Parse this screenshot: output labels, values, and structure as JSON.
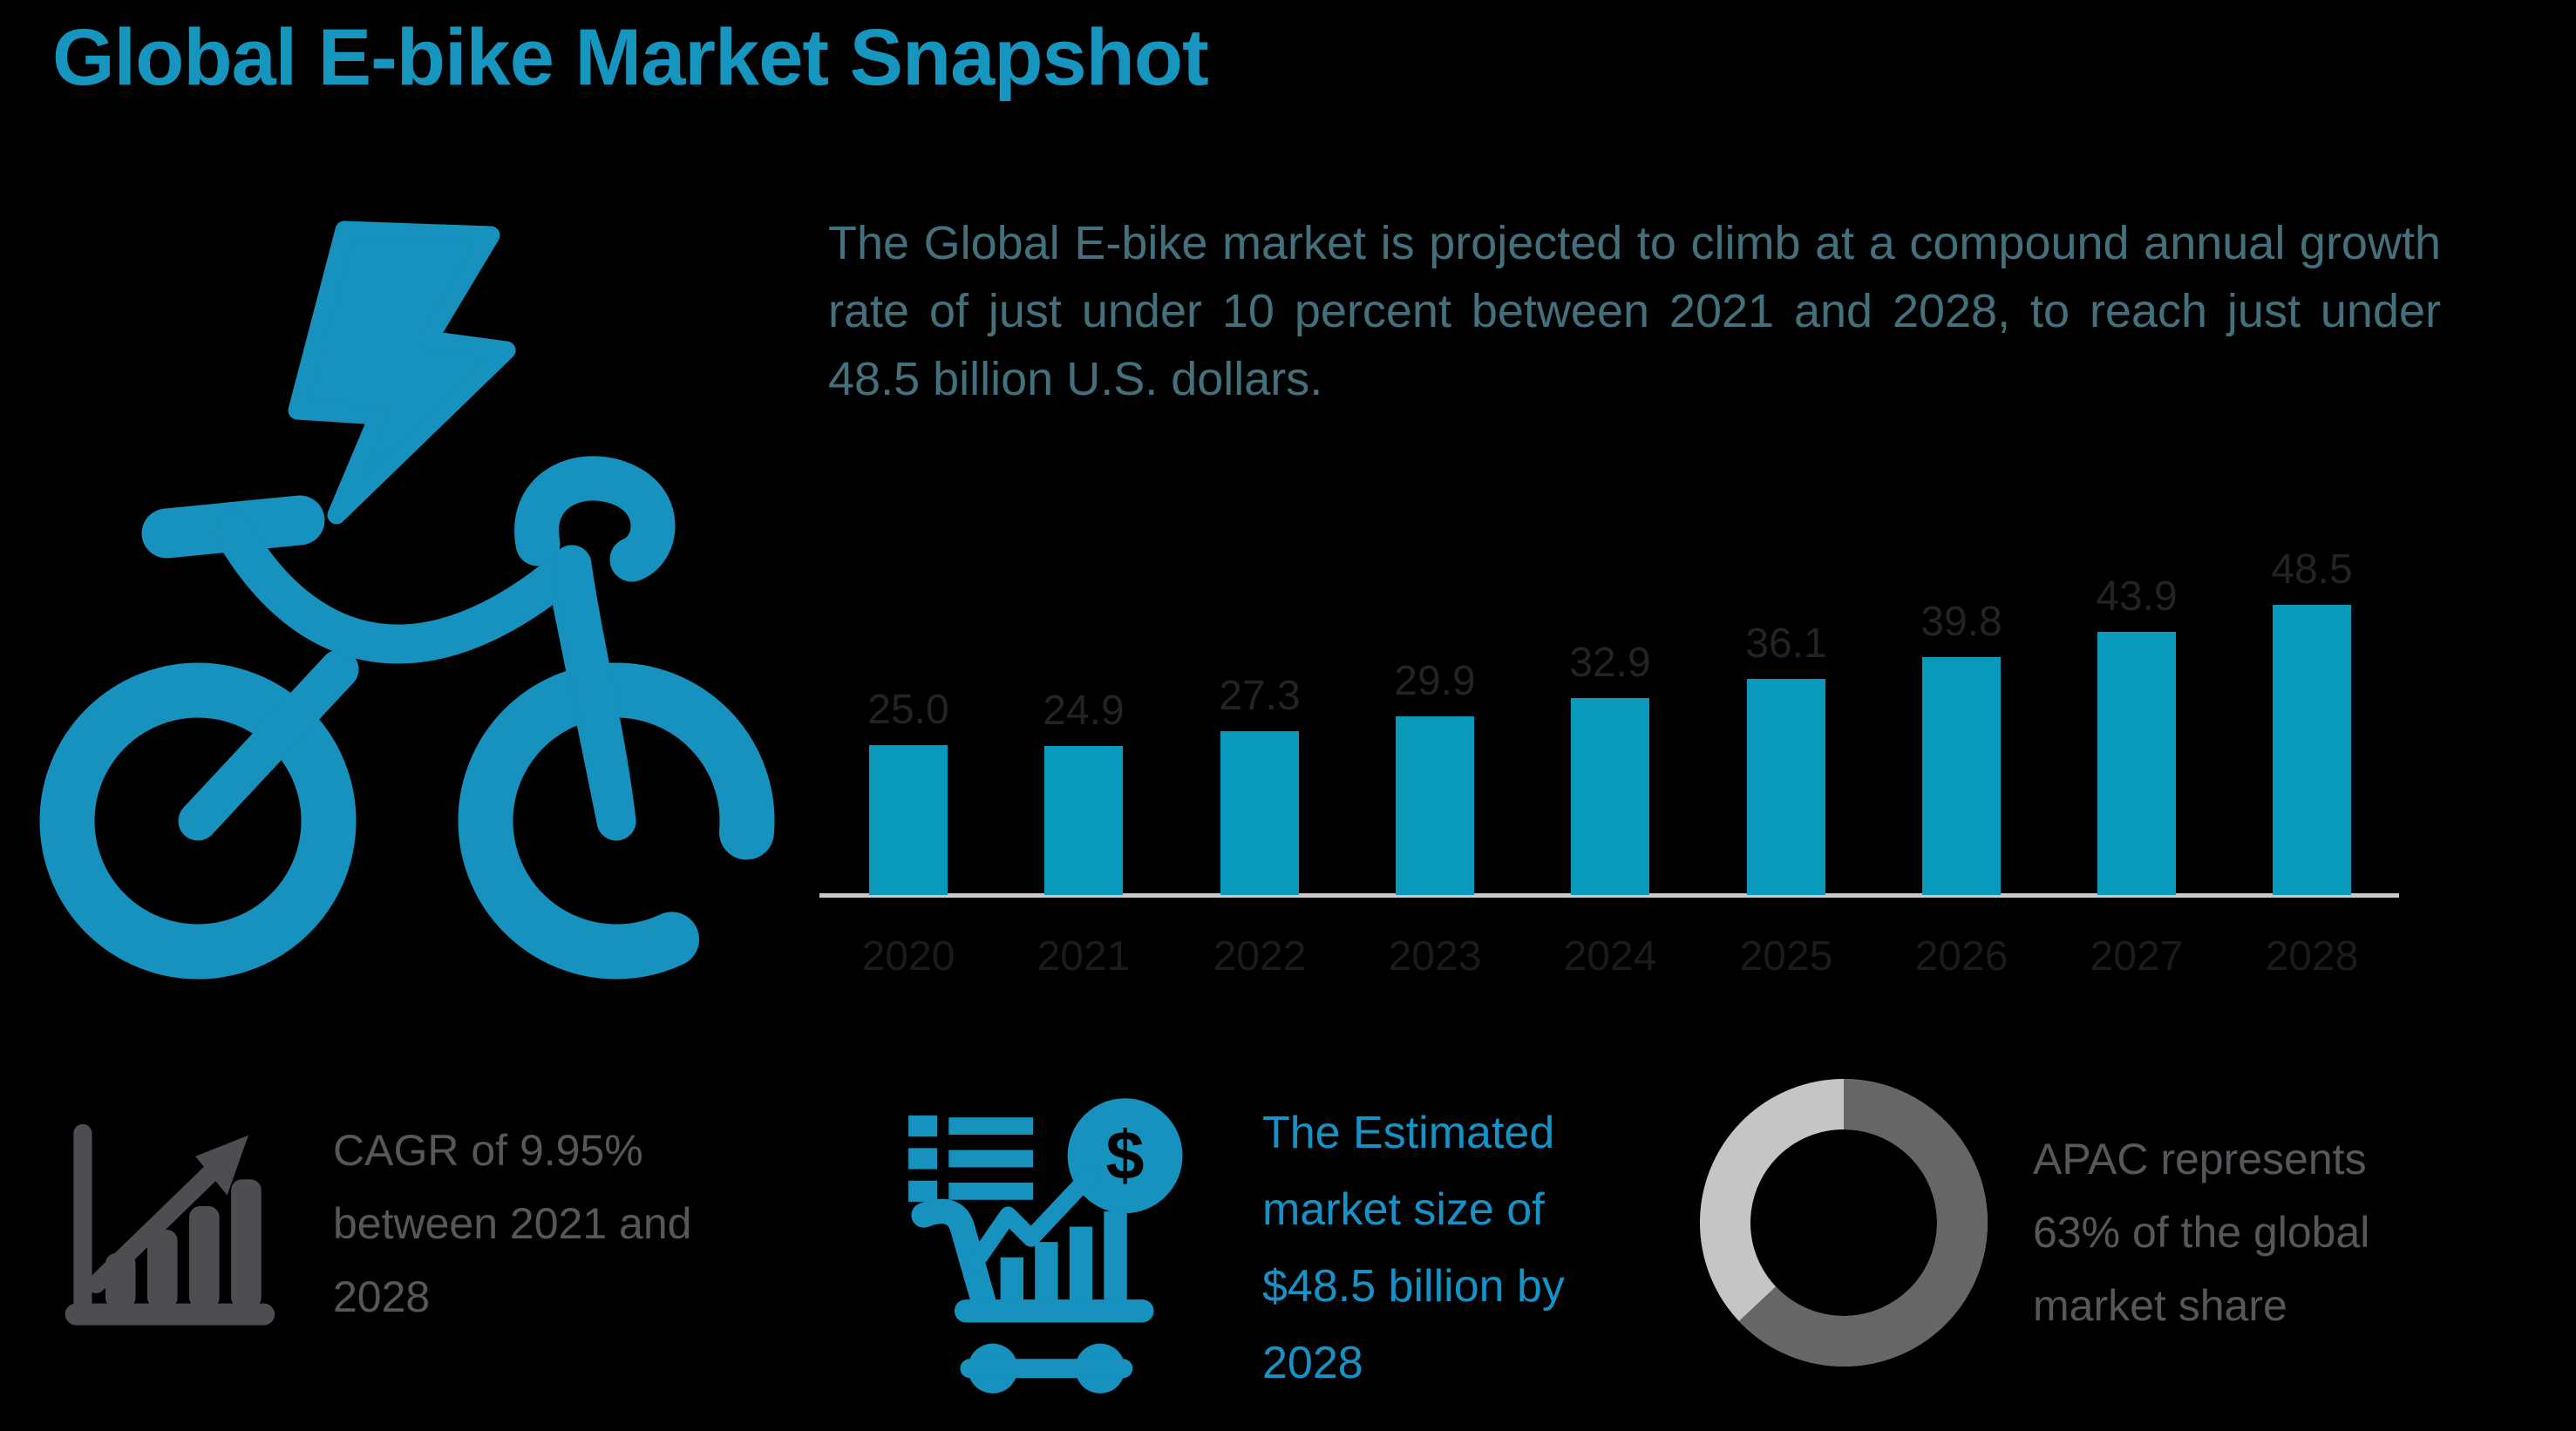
{
  "page": {
    "title": "Global E-bike Market Snapshot"
  },
  "intro": {
    "text": "The Global E-bike market is projected to climb at a compound annual growth rate of just under 10 percent between 2021 and 2028, to reach just under 48.5 billion U.S. dollars."
  },
  "chart_data": {
    "type": "bar",
    "title": "Global E-bike market size 2020-2028",
    "categories": [
      "2020",
      "2021",
      "2022",
      "2023",
      "2024",
      "2025",
      "2026",
      "2027",
      "2028"
    ],
    "values": [
      25.0,
      24.9,
      27.3,
      29.9,
      32.9,
      36.1,
      39.8,
      43.9,
      48.5
    ],
    "labels": [
      "25.0",
      "24.9",
      "27.3",
      "29.9",
      "32.9",
      "36.1",
      "39.8",
      "43.9",
      "48.5"
    ],
    "unit": "billion U.S. dollars",
    "xlabel": "",
    "ylabel": "",
    "ylim": [
      0,
      55
    ],
    "grid": false,
    "legend": false,
    "bar_color": "#0899BD",
    "value_label_color": "#232323",
    "year_label_color": "#1B1B1B",
    "axis_line_color": "#C9C9C9"
  },
  "stats": {
    "cagr": {
      "icon": "growth-chart-icon",
      "lines": [
        "CAGR of 9.95%",
        "between 2021 and",
        "2028"
      ],
      "color": "#57575B"
    },
    "market_size": {
      "icon": "cart-dollar-icon",
      "lines": [
        "The Estimated",
        "market size of",
        "$48.5 billion by",
        "2028"
      ],
      "color": "#1792C6"
    },
    "apac": {
      "icon": "donut-chart-icon",
      "lines": [
        "APAC represents",
        "63% of the global",
        "market share"
      ],
      "donut_percent": 63,
      "color": "#57575B"
    }
  },
  "colors": {
    "background": "#000000",
    "title_teal": "#1695BF",
    "intro_teal": "#44707B",
    "bar_teal": "#0899BD",
    "icon_teal": "#1791BD",
    "gray_text": "#57575B",
    "gray_icon": "#4E4E52",
    "donut_dark": "#666666",
    "donut_light": "#C5C5C5"
  }
}
